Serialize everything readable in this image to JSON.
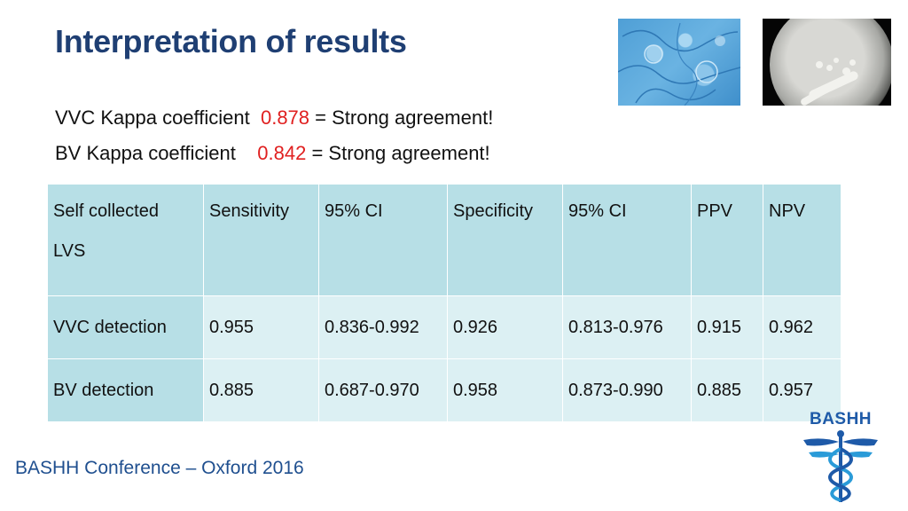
{
  "title": "Interpretation of results",
  "kappa": [
    {
      "label": "VVC Kappa coefficient  ",
      "value": "0.878",
      "suffix": " = Strong agreement!"
    },
    {
      "label": "BV Kappa coefficient    ",
      "value": "0.842",
      "suffix": " = Strong agreement!"
    }
  ],
  "table": {
    "header": {
      "col0_line1": "Self collected",
      "col0_line2": "LVS",
      "cols": [
        "Sensitivity",
        "95% CI",
        "Specificity",
        "95% CI",
        "PPV",
        "NPV"
      ]
    },
    "rows": [
      {
        "label": "VVC  detection",
        "values": [
          "0.955",
          "0.836-0.992",
          "0.926",
          "0.813-0.976",
          "0.915",
          "0.962"
        ]
      },
      {
        "label": "BV detection",
        "values": [
          "0.885",
          "0.687-0.970",
          "0.958",
          "0.873-0.990",
          "0.885",
          "0.957"
        ]
      }
    ]
  },
  "footer": "BASHH Conference – Oxford 2016",
  "logo": {
    "text": "BASHH"
  },
  "images": {
    "left": "microscopy-image",
    "right": "agar-plate-culture-image"
  },
  "colors": {
    "title": "#1f3f73",
    "kappa_value": "#e02020",
    "table_header": "#b7dfe6",
    "table_body": "#dcf0f3",
    "footer": "#1f4f8f"
  }
}
